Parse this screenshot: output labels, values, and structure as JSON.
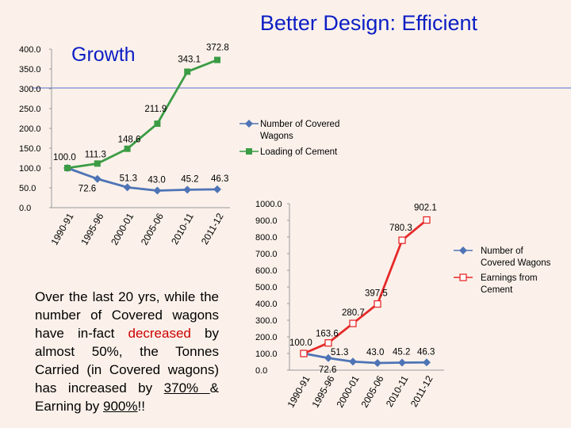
{
  "slide": {
    "title": "Better Design: Efficient",
    "body_parts": [
      {
        "text": "Over the last 20 yrs, while the number of Covered wagons have in-fact ",
        "style": ""
      },
      {
        "text": "decreased",
        "style": "red"
      },
      {
        "text": " by almost 50%, the Tonnes Carried (in Covered wagons) has increased by ",
        "style": ""
      },
      {
        "text": "370% ",
        "style": "u"
      },
      {
        "text": " & Earning by ",
        "style": ""
      },
      {
        "text": "900%",
        "style": "u"
      },
      {
        "text": "!!",
        "style": ""
      }
    ]
  },
  "chart_data": [
    {
      "type": "line",
      "title": "Growth",
      "categories": [
        "1990-91",
        "1995-96",
        "2000-01",
        "2005-06",
        "2010-11",
        "2011-12"
      ],
      "ylim": [
        0,
        400
      ],
      "yticks": [
        "400.0",
        "350.0",
        "300.0",
        "250.0",
        "200.0",
        "150.0",
        "100.0",
        "50.0",
        "0.0"
      ],
      "legend_position": "right",
      "series": [
        {
          "name": "Number of Covered Wagons",
          "values": [
            100.0,
            72.6,
            51.3,
            43.0,
            45.2,
            46.3
          ],
          "labels": [
            "100.0",
            "72.6",
            "51.3",
            "43.0",
            "45.2",
            "46.3"
          ],
          "color": "#4e74b6",
          "marker": "diamond"
        },
        {
          "name": "Loading of Cement",
          "values": [
            100.0,
            111.3,
            148.6,
            211.9,
            343.1,
            372.8
          ],
          "labels": [
            "",
            "111.3",
            "148.6",
            "211.9",
            "343.1",
            "372.8"
          ],
          "color": "#3b9c45",
          "marker": "square"
        }
      ],
      "grid": false
    },
    {
      "type": "line",
      "categories": [
        "1990-91",
        "1995-96",
        "2000-01",
        "2005-06",
        "2010-11",
        "2011-12"
      ],
      "ylim": [
        0,
        1000
      ],
      "yticks": [
        "1000.0",
        "900.0",
        "800.0",
        "700.0",
        "600.0",
        "500.0",
        "400.0",
        "300.0",
        "200.0",
        "100.0",
        "0.0"
      ],
      "legend_position": "right",
      "series": [
        {
          "name": "Number of Covered Wagons",
          "values": [
            100.0,
            72.6,
            51.3,
            43.0,
            45.2,
            46.3
          ],
          "labels": [
            "",
            "72.6",
            "51.3",
            "43.0",
            "45.2",
            "46.3"
          ],
          "color": "#4e74b6",
          "marker": "diamond"
        },
        {
          "name": "Earnings from Cement",
          "values": [
            100.0,
            163.6,
            280.7,
            397.5,
            780.3,
            902.1
          ],
          "labels": [
            "100.0",
            "163.6",
            "280.7",
            "397.5",
            "780.3",
            "902.1"
          ],
          "color": "#e62a2a",
          "marker": "hollow-square"
        }
      ],
      "grid": false
    }
  ]
}
